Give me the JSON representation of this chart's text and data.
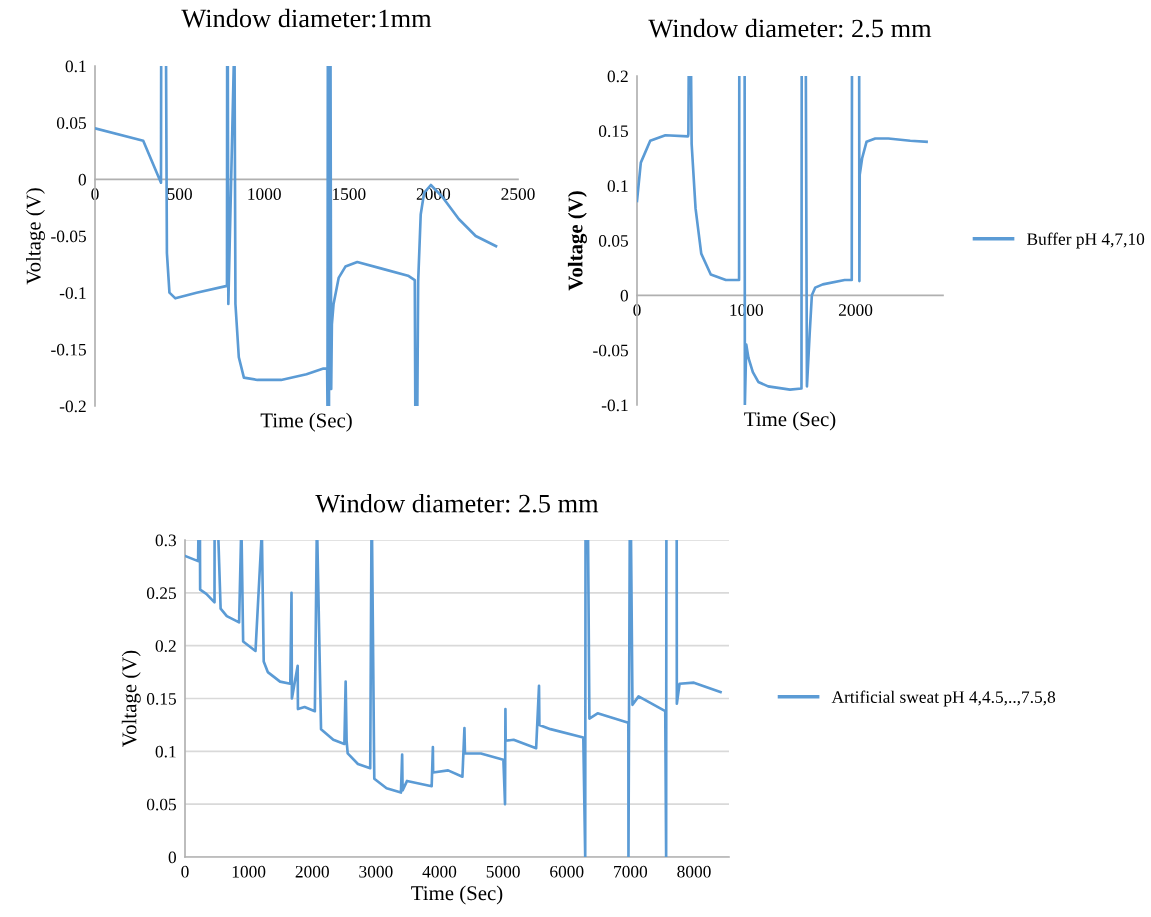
{
  "chart_data": [
    {
      "type": "line",
      "title": "Window diameter:1mm",
      "xlabel": "Time (Sec)",
      "ylabel": "Voltage (V)",
      "xlim": [
        0,
        2500
      ],
      "ylim": [
        -0.2,
        0.1
      ],
      "xticks": [
        0,
        500,
        1000,
        1500,
        2000,
        2500
      ],
      "yticks": [
        -0.2,
        -0.15,
        -0.1,
        -0.05,
        0,
        0.05,
        0.1
      ],
      "grid": false,
      "series": [
        {
          "color": "#5b9bd5",
          "x": [
            0,
            285,
            390,
            391,
            392,
            420,
            425,
            440,
            475,
            600,
            780,
            781,
            782,
            785,
            788,
            820,
            821,
            825,
            830,
            850,
            880,
            960,
            1100,
            1250,
            1350,
            1372,
            1374,
            1376,
            1377,
            1380,
            1383,
            1386,
            1387,
            1392,
            1396,
            1400,
            1410,
            1440,
            1480,
            1550,
            1700,
            1850,
            1890,
            1893,
            1894,
            1905,
            1910,
            1925,
            1945,
            1985,
            2050,
            2150,
            2250,
            2370
          ],
          "values": [
            0.045,
            0.034,
            -0.003,
            0.1,
            null,
            0.1,
            -0.065,
            -0.1,
            -0.105,
            -0.1,
            -0.094,
            0.1,
            null,
            0.1,
            -0.11,
            0.1,
            null,
            0.1,
            -0.11,
            -0.157,
            -0.175,
            -0.177,
            -0.177,
            -0.172,
            -0.167,
            -0.167,
            -0.2,
            0.1,
            null,
            0.1,
            -0.2,
            0.1,
            null,
            0.1,
            -0.185,
            -0.128,
            -0.11,
            -0.087,
            -0.077,
            -0.073,
            -0.079,
            -0.085,
            -0.089,
            -0.2,
            null,
            -0.2,
            -0.09,
            -0.031,
            -0.012,
            -0.005,
            -0.015,
            -0.035,
            -0.05,
            -0.059
          ]
        }
      ]
    },
    {
      "type": "line",
      "title": "Window diameter: 2.5 mm",
      "xlabel": "Time (Sec)",
      "ylabel": "Voltage (V)",
      "xlim": [
        0,
        2800
      ],
      "ylim": [
        -0.1,
        0.2
      ],
      "xticks": [
        0,
        1000,
        2000
      ],
      "yticks": [
        -0.1,
        -0.05,
        0,
        0.05,
        0.1,
        0.15,
        0.2
      ],
      "grid": false,
      "legend": "right",
      "series": [
        {
          "name": "Buffer pH 4,7,10",
          "color": "#5b9bd5",
          "x": [
            0,
            35,
            121,
            260,
            467,
            470,
            473,
            474,
            495,
            500,
            536,
            588,
            675,
            813,
            934,
            936,
            937,
            985,
            987,
            1000,
            1020,
            1060,
            1110,
            1200,
            1400,
            1505,
            1507,
            1508,
            1545,
            1555,
            1580,
            1600,
            1630,
            1700,
            1900,
            1965,
            1967,
            1968,
            2033,
            2035,
            2038,
            2060,
            2100,
            2180,
            2300,
            2500,
            2650
          ],
          "values": [
            0.086,
            0.121,
            0.141,
            0.146,
            0.145,
            0.147,
            0.2,
            null,
            0.2,
            0.138,
            0.079,
            0.038,
            0.019,
            0.014,
            0.014,
            0.2,
            null,
            0.2,
            -0.1,
            -0.045,
            -0.057,
            -0.07,
            -0.079,
            -0.083,
            -0.086,
            -0.085,
            0.2,
            null,
            0.2,
            -0.083,
            -0.035,
            0.0,
            0.007,
            0.01,
            0.014,
            0.014,
            0.2,
            null,
            0.2,
            0.013,
            0.11,
            0.125,
            0.14,
            0.143,
            0.143,
            0.141,
            0.14
          ]
        }
      ]
    },
    {
      "type": "line",
      "title": "Window diameter: 2.5 mm",
      "xlabel": "Time (Sec)",
      "ylabel": "Voltage (V)",
      "xlim": [
        0,
        8550
      ],
      "ylim": [
        0,
        0.3
      ],
      "xticks": [
        0,
        1000,
        2000,
        3000,
        4000,
        5000,
        6000,
        7000,
        8000
      ],
      "yticks": [
        0,
        0.05,
        0.1,
        0.15,
        0.2,
        0.25,
        0.3
      ],
      "grid": "y",
      "legend": "right",
      "series": [
        {
          "name": "Artificial sweat pH 4,4.5,..,7.5,8",
          "color": "#5b9bd5",
          "x": [
            0,
            206,
            210,
            211,
            235,
            238,
            335,
            464,
            465,
            466,
            525,
            560,
            657,
            850,
            880,
            881,
            890,
            914,
            1108,
            1200,
            1201,
            1210,
            1237,
            1301,
            1494,
            1655,
            1674,
            1680,
            1771,
            1775,
            1880,
            2041,
            2070,
            2071,
            2080,
            2138,
            2331,
            2505,
            2525,
            2540,
            2557,
            2718,
            2911,
            2930,
            2931,
            2940,
            2975,
            3168,
            3394,
            3413,
            3420,
            3490,
            3877,
            3896,
            3900,
            4135,
            4360,
            4392,
            4400,
            4650,
            5004,
            5030,
            5036,
            5040,
            5165,
            5519,
            5564,
            5570,
            5744,
            6260,
            6290,
            6295,
            6296,
            6335,
            6356,
            6485,
            6968,
            6970,
            6990,
            6991,
            7010,
            7033,
            7129,
            7548,
            7562,
            7566,
            7567,
            7728,
            7730,
            7773,
            7998,
            8417
          ],
          "values": [
            0.285,
            0.28,
            0.3,
            null,
            0.3,
            0.253,
            0.249,
            0.241,
            0.3,
            null,
            0.3,
            0.235,
            0.228,
            0.222,
            0.3,
            null,
            0.3,
            0.204,
            0.195,
            0.3,
            null,
            0.3,
            0.185,
            0.175,
            0.166,
            0.164,
            0.25,
            0.15,
            0.181,
            0.14,
            0.142,
            0.138,
            0.3,
            null,
            0.3,
            0.121,
            0.111,
            0.107,
            0.166,
            0.11,
            0.098,
            0.088,
            0.084,
            0.3,
            null,
            0.3,
            0.074,
            0.065,
            0.061,
            0.097,
            0.063,
            0.072,
            0.067,
            0.104,
            0.08,
            0.082,
            0.076,
            0.122,
            0.098,
            0.098,
            0.092,
            0.05,
            0.14,
            0.11,
            0.111,
            0.103,
            0.162,
            0.125,
            0.121,
            0.113,
            0,
            0.3,
            null,
            0.3,
            0.131,
            0.136,
            0.127,
            0,
            0.3,
            null,
            0.3,
            0.144,
            0.152,
            0.138,
            0,
            0.3,
            null,
            0.3,
            0.145,
            0.164,
            0.165,
            0.156
          ]
        }
      ]
    }
  ]
}
